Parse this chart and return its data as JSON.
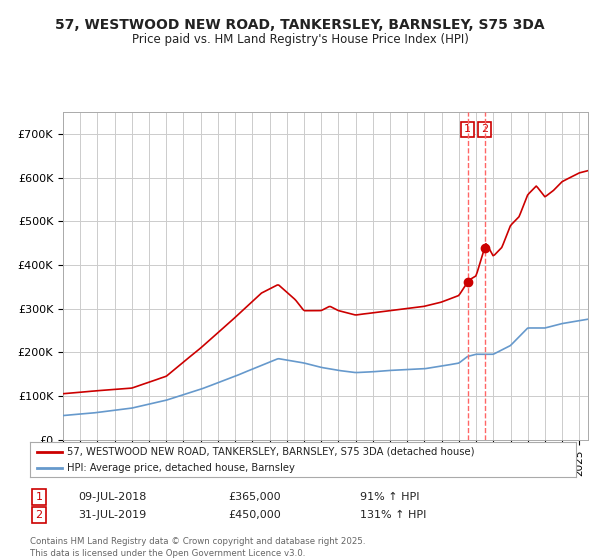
{
  "title": "57, WESTWOOD NEW ROAD, TANKERSLEY, BARNSLEY, S75 3DA",
  "subtitle": "Price paid vs. HM Land Registry's House Price Index (HPI)",
  "legend_line1": "57, WESTWOOD NEW ROAD, TANKERSLEY, BARNSLEY, S75 3DA (detached house)",
  "legend_line2": "HPI: Average price, detached house, Barnsley",
  "transaction1_date": "09-JUL-2018",
  "transaction1_price": 365000,
  "transaction1_hpi": "91% ↑ HPI",
  "transaction2_date": "31-JUL-2019",
  "transaction2_price": 450000,
  "transaction2_hpi": "131% ↑ HPI",
  "footer": "Contains HM Land Registry data © Crown copyright and database right 2025.\nThis data is licensed under the Open Government Licence v3.0.",
  "red_color": "#cc0000",
  "blue_color": "#6699cc",
  "vline_color": "#ff6666",
  "background_color": "#ffffff",
  "grid_color": "#cccccc",
  "ylim": [
    0,
    750000
  ],
  "start_year": 1995,
  "end_year": 2025
}
